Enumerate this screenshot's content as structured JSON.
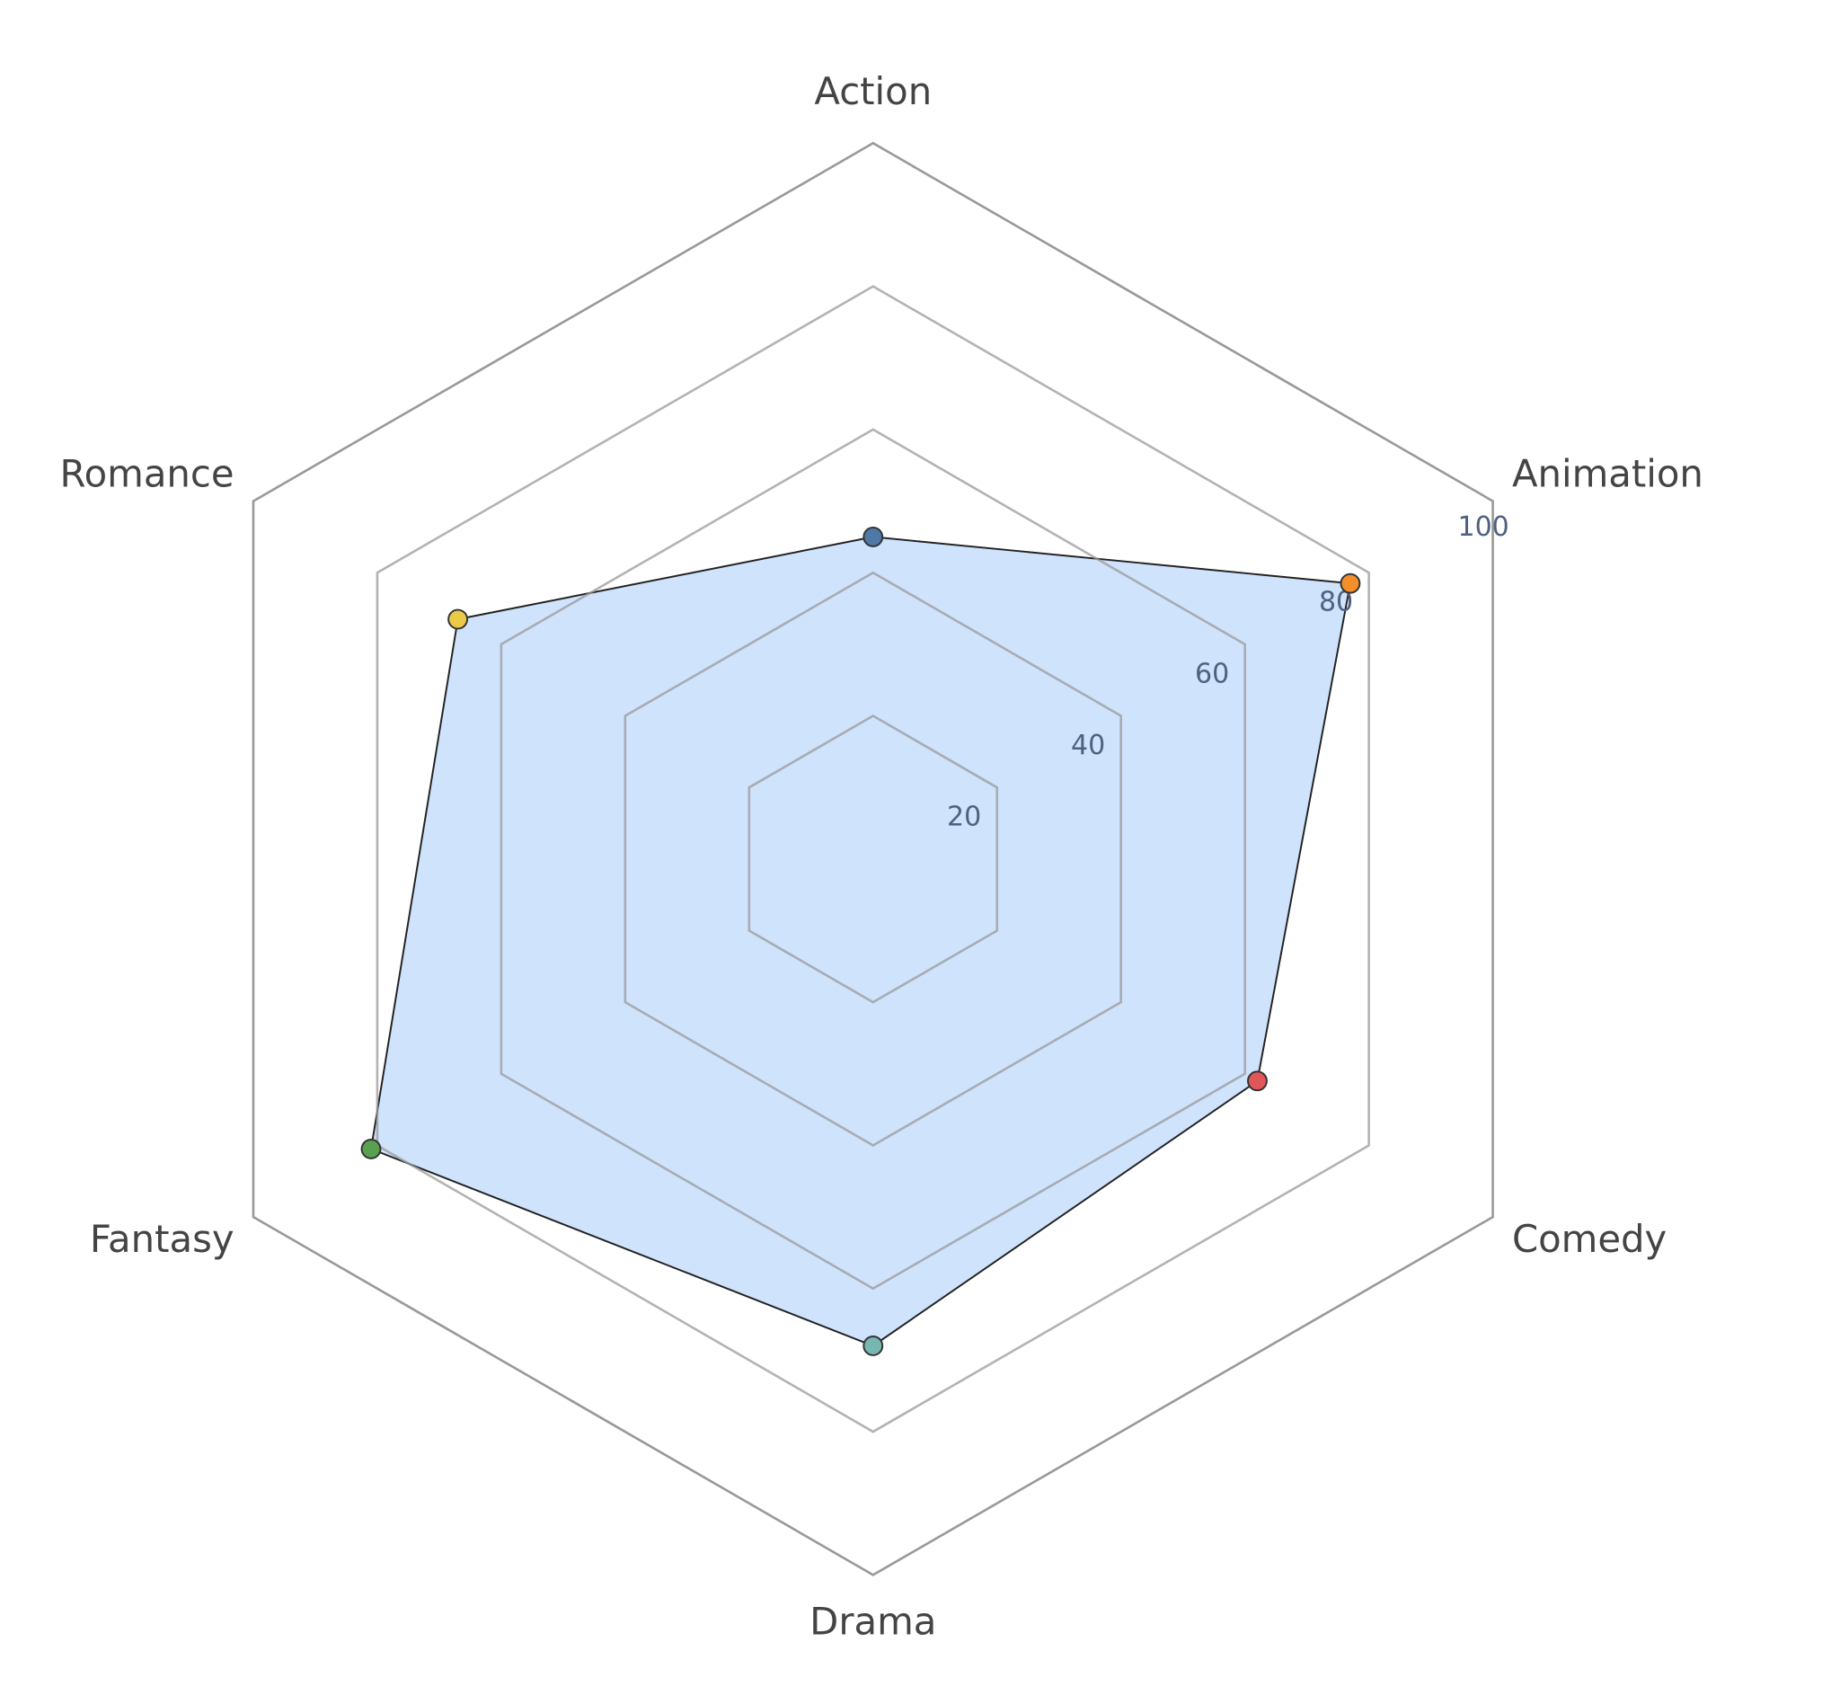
{
  "chart_data": {
    "type": "radar",
    "categories": [
      "Action",
      "Animation",
      "Comedy",
      "Drama",
      "Fantasy",
      "Romance"
    ],
    "values": [
      45,
      77,
      62,
      68,
      81,
      67
    ],
    "point_colors": [
      "#4e79a7",
      "#f28e2b",
      "#e15759",
      "#76b7b2",
      "#59a14f",
      "#edc948"
    ],
    "fill_color": "#cfe3fd",
    "line_color": "#222222",
    "grid_color": "#999999",
    "rlim": [
      0,
      100
    ],
    "rticks": [
      20,
      40,
      60,
      80,
      100
    ]
  }
}
